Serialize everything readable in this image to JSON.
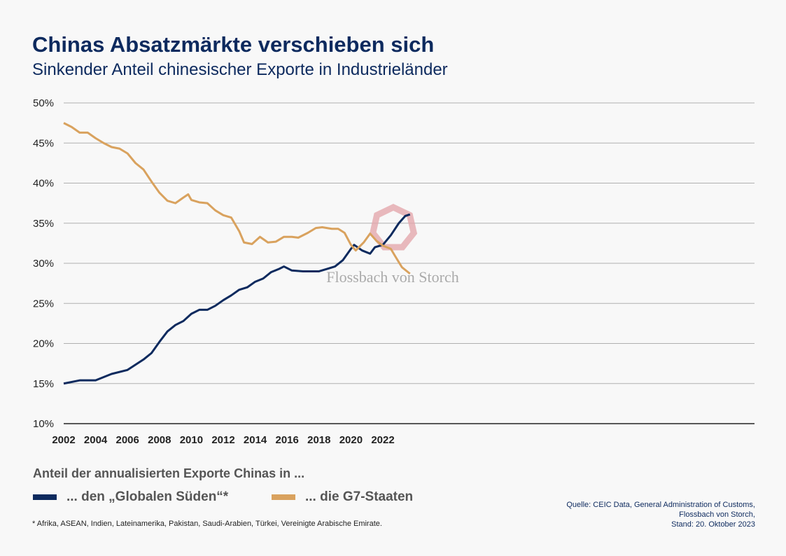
{
  "header": {
    "title": "Chinas Absatzmärkte verschieben sich",
    "subtitle": "Sinkender Anteil chinesischer Exporte in Industrieländer"
  },
  "logo": {
    "text": "Flossbach von Storch"
  },
  "legend": {
    "title": "Anteil der annualisierten Exporte Chinas in ...",
    "items": [
      {
        "label": "... den „Globalen Süden“*",
        "color": "#0d2a5e"
      },
      {
        "label": "... die G7-Staaten",
        "color": "#d9a25e"
      }
    ]
  },
  "footnote": "* Afrika, ASEAN, Indien, Lateinamerika, Pakistan, Saudi-Arabien, Türkei, Vereinigte Arabische Emirate.",
  "source": [
    "Quelle: CEIC Data, General Administration of Customs,",
    "Flossbach von Storch,",
    "Stand: 20. Oktober 2023"
  ],
  "chart_data": {
    "type": "line",
    "xlim": [
      2002,
      2023.75
    ],
    "ylim": [
      10,
      50
    ],
    "x_ticks": [
      "2002",
      "2004",
      "2006",
      "2008",
      "2010",
      "2012",
      "2014",
      "2016",
      "2018",
      "2020",
      "2022"
    ],
    "y_ticks": [
      "10%",
      "15%",
      "20%",
      "25%",
      "30%",
      "35%",
      "40%",
      "45%",
      "50%"
    ],
    "grid": true,
    "series": [
      {
        "name": "... den „Globalen Süden“*",
        "color": "#0d2a5e",
        "points": [
          [
            2002,
            15.0
          ],
          [
            2003,
            15.4
          ],
          [
            2004,
            15.4
          ],
          [
            2005,
            16.2
          ],
          [
            2006,
            16.7
          ],
          [
            2007,
            18.0
          ],
          [
            2007.5,
            18.8
          ],
          [
            2008,
            20.2
          ],
          [
            2008.5,
            21.5
          ],
          [
            2009,
            22.3
          ],
          [
            2009.5,
            22.8
          ],
          [
            2010,
            23.7
          ],
          [
            2010.5,
            24.2
          ],
          [
            2011,
            24.2
          ],
          [
            2011.5,
            24.7
          ],
          [
            2012,
            25.4
          ],
          [
            2012.5,
            26.0
          ],
          [
            2013,
            26.7
          ],
          [
            2013.5,
            27.0
          ],
          [
            2014,
            27.7
          ],
          [
            2014.5,
            28.1
          ],
          [
            2015,
            28.9
          ],
          [
            2015.5,
            29.3
          ],
          [
            2015.8,
            29.6
          ],
          [
            2016.3,
            29.1
          ],
          [
            2017,
            29.0
          ],
          [
            2018,
            29.0
          ],
          [
            2018.5,
            29.3
          ],
          [
            2019,
            29.6
          ],
          [
            2019.5,
            30.4
          ],
          [
            2020,
            31.8
          ],
          [
            2020.2,
            32.3
          ],
          [
            2020.7,
            31.6
          ],
          [
            2021.2,
            31.2
          ],
          [
            2021.5,
            32.0
          ],
          [
            2022,
            32.3
          ],
          [
            2022.5,
            33.5
          ],
          [
            2023,
            35.0
          ],
          [
            2023.4,
            35.9
          ],
          [
            2023.7,
            36.1
          ]
        ]
      },
      {
        "name": "... die G7-Staaten",
        "color": "#d9a25e",
        "points": [
          [
            2002,
            47.5
          ],
          [
            2002.5,
            47.0
          ],
          [
            2003,
            46.3
          ],
          [
            2003.5,
            46.3
          ],
          [
            2004,
            45.6
          ],
          [
            2004.5,
            45.0
          ],
          [
            2005,
            44.5
          ],
          [
            2005.5,
            44.3
          ],
          [
            2006,
            43.7
          ],
          [
            2006.5,
            42.5
          ],
          [
            2007,
            41.7
          ],
          [
            2007.5,
            40.2
          ],
          [
            2008,
            38.8
          ],
          [
            2008.5,
            37.8
          ],
          [
            2009,
            37.5
          ],
          [
            2009.5,
            38.2
          ],
          [
            2009.8,
            38.6
          ],
          [
            2010,
            37.9
          ],
          [
            2010.5,
            37.6
          ],
          [
            2011,
            37.5
          ],
          [
            2011.5,
            36.6
          ],
          [
            2012,
            36.0
          ],
          [
            2012.5,
            35.7
          ],
          [
            2013,
            34.0
          ],
          [
            2013.3,
            32.6
          ],
          [
            2013.8,
            32.4
          ],
          [
            2014.3,
            33.3
          ],
          [
            2014.8,
            32.6
          ],
          [
            2015.3,
            32.7
          ],
          [
            2015.8,
            33.3
          ],
          [
            2016.3,
            33.3
          ],
          [
            2016.7,
            33.2
          ],
          [
            2017.3,
            33.8
          ],
          [
            2017.8,
            34.4
          ],
          [
            2018.2,
            34.5
          ],
          [
            2018.8,
            34.3
          ],
          [
            2019.2,
            34.3
          ],
          [
            2019.6,
            33.8
          ],
          [
            2020,
            32.3
          ],
          [
            2020.3,
            31.6
          ],
          [
            2020.8,
            32.6
          ],
          [
            2021.2,
            33.7
          ],
          [
            2021.6,
            32.8
          ],
          [
            2022,
            32.2
          ],
          [
            2022.5,
            31.8
          ],
          [
            2022.8,
            30.8
          ],
          [
            2023.2,
            29.5
          ],
          [
            2023.7,
            28.7
          ]
        ]
      }
    ]
  }
}
